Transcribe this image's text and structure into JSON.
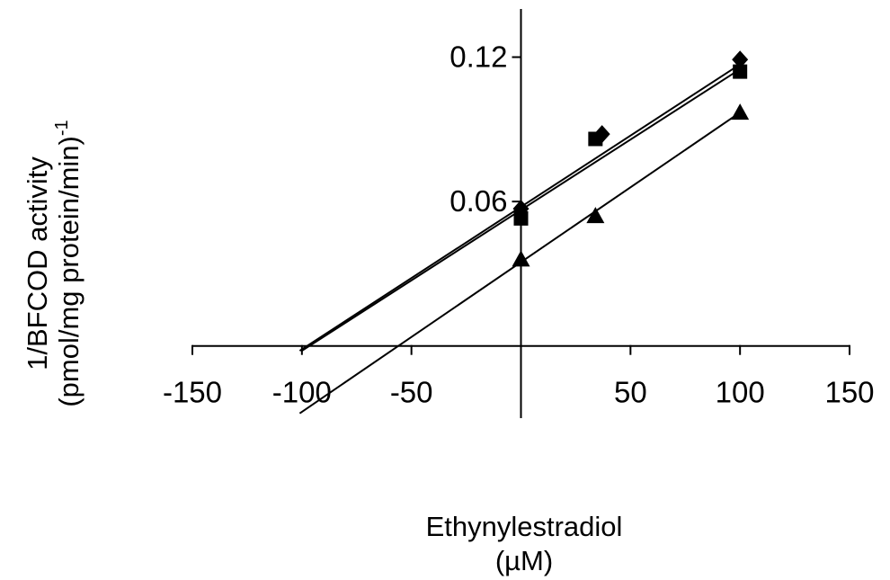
{
  "chart_data": {
    "type": "scatter",
    "title": "",
    "xlabel": "Ethynylestradiol",
    "xlabel_unit": "(µM)",
    "ylabel": "1/BFCOD activity",
    "ylabel_unit_main": "(pmol/mg protein/min)",
    "ylabel_unit_exp": "-1",
    "xlim": [
      -150,
      150
    ],
    "ylim": [
      -0.03,
      0.14
    ],
    "x_ticks": [
      -150,
      -100,
      -50,
      50,
      100,
      150
    ],
    "x_tick_labels": [
      "-150",
      "-100",
      "-50",
      "50",
      "100",
      "150"
    ],
    "y_ticks": [
      0.06,
      0.12
    ],
    "y_tick_labels": [
      "0.06",
      "0.12"
    ],
    "grid": false,
    "legend": "none",
    "series": [
      {
        "marker": "diamond",
        "color": "#000000",
        "points": [
          [
            0,
            0.057
          ],
          [
            37,
            0.088
          ],
          [
            100,
            0.119
          ]
        ],
        "fit_line": {
          "x": [
            -101,
            100
          ],
          "y": [
            -0.002,
            0.117
          ]
        }
      },
      {
        "marker": "square",
        "color": "#000000",
        "points": [
          [
            0,
            0.053
          ],
          [
            34,
            0.086
          ],
          [
            100,
            0.114
          ]
        ],
        "fit_line": {
          "x": [
            -100,
            100
          ],
          "y": [
            -0.002,
            0.115
          ]
        }
      },
      {
        "marker": "triangle",
        "color": "#000000",
        "points": [
          [
            0,
            0.036
          ],
          [
            34,
            0.054
          ],
          [
            100,
            0.097
          ]
        ],
        "fit_line": {
          "x": [
            -101,
            100
          ],
          "y": [
            -0.028,
            0.097
          ]
        }
      }
    ]
  }
}
